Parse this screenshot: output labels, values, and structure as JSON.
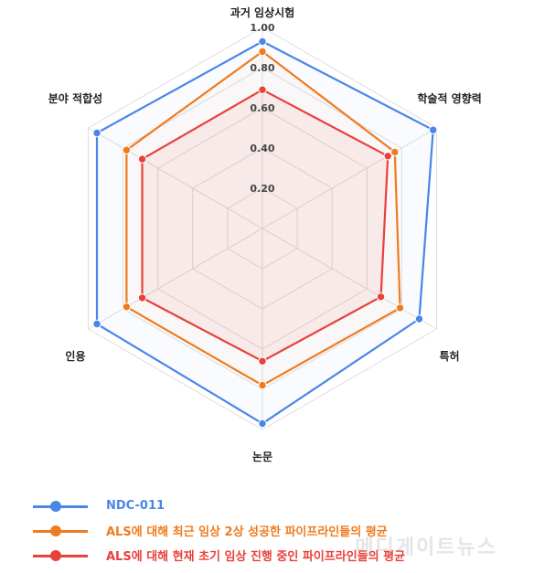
{
  "chart_data": {
    "type": "radar",
    "axes": [
      "과거 임상시험",
      "학술적 영향력",
      "특허",
      "논문",
      "인용",
      "분야 적합성"
    ],
    "ticks": [
      "0.20",
      "0.40",
      "0.60",
      "0.80",
      "1.00"
    ],
    "tick_values": [
      0.2,
      0.4,
      0.6,
      0.8,
      1.0
    ],
    "rlim": [
      0,
      1.0
    ],
    "grid": true,
    "legend_position": "bottom-left",
    "series": [
      {
        "name": "NDC-011",
        "color": "#4a86e8",
        "values": [
          0.93,
          0.98,
          0.9,
          0.97,
          0.95,
          0.95
        ]
      },
      {
        "name": "ALS에 대해 최근 임상 2상 성공한 파이프라인들의 평균",
        "color": "#f07b1e",
        "values": [
          0.88,
          0.76,
          0.79,
          0.78,
          0.78,
          0.78
        ]
      },
      {
        "name": "ALS에 대해 현재 초기 임상 진행 중인 파이프라인들의 평균",
        "color": "#e8413c",
        "values": [
          0.69,
          0.72,
          0.68,
          0.66,
          0.69,
          0.69
        ]
      }
    ]
  },
  "watermark": "메디게이트뉴스"
}
